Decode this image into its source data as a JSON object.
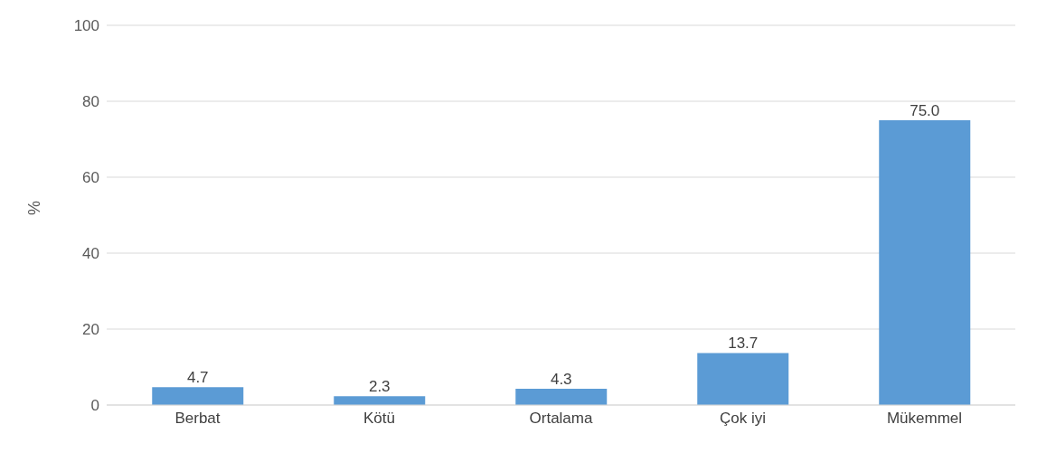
{
  "chart_data": {
    "type": "bar",
    "ylabel": "%",
    "categories": [
      "Berbat",
      "Kötü",
      "Ortalama",
      "Çok iyi",
      "Mükemmel"
    ],
    "values": [
      4.7,
      2.3,
      4.3,
      13.7,
      75.0
    ],
    "value_labels": [
      "4.7",
      "2.3",
      "4.3",
      "13.7",
      "75.0"
    ],
    "color": "#5b9bd5",
    "ylim": [
      0,
      100
    ],
    "yticks": [
      0,
      20,
      40,
      60,
      80,
      100
    ],
    "grid": "y"
  }
}
